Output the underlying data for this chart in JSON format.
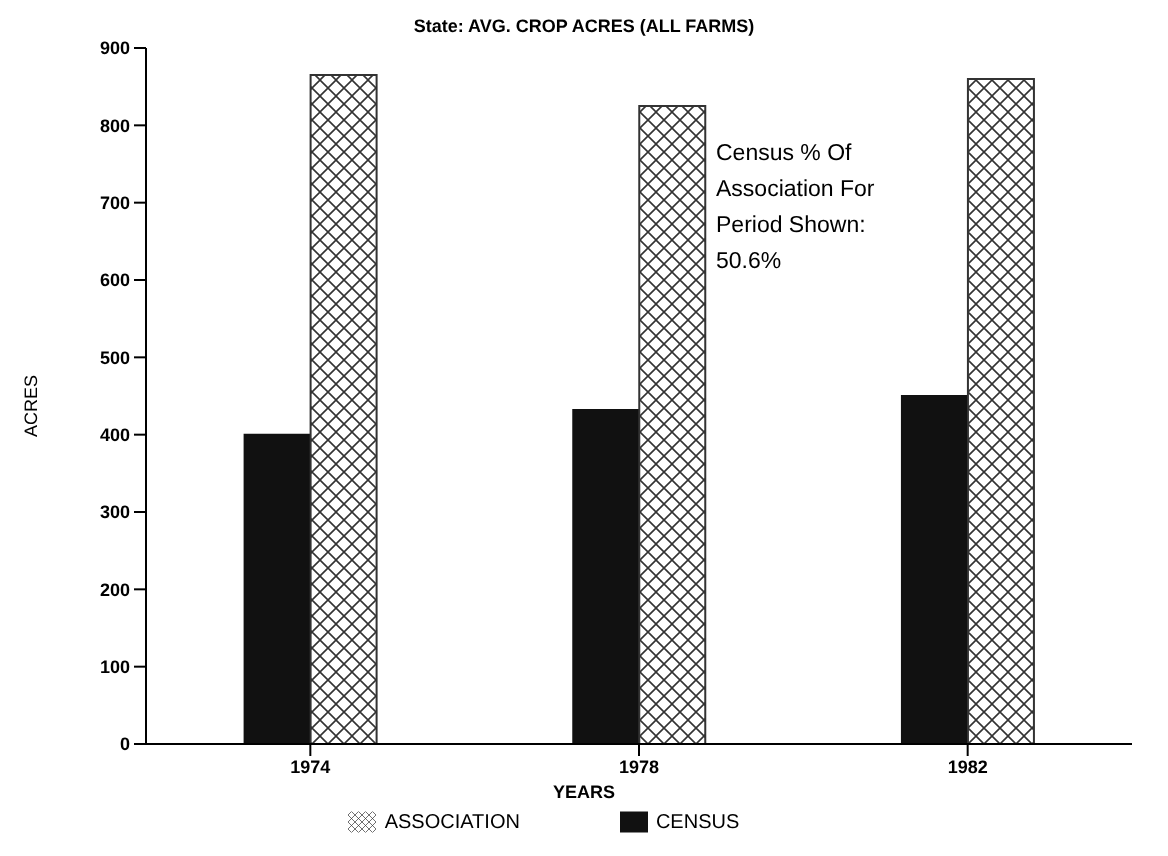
{
  "chart_data": {
    "type": "bar",
    "title": "State: AVG. CROP ACRES (ALL FARMS)",
    "xlabel": "YEARS",
    "ylabel": "ACRES",
    "categories": [
      "1974",
      "1978",
      "1982"
    ],
    "series": [
      {
        "name": "CENSUS",
        "color": "#111111",
        "values": [
          400,
          432,
          450
        ]
      },
      {
        "name": "ASSOCIATION",
        "color": "#333333",
        "values": [
          865,
          825,
          860
        ]
      }
    ],
    "ylim": [
      0,
      900
    ],
    "yticks": [
      0,
      100,
      200,
      300,
      400,
      500,
      600,
      700,
      800,
      900
    ],
    "grid": false,
    "legend": "bottom",
    "annotations": [
      "Census % Of Association For Period Shown: 50.6%"
    ]
  }
}
